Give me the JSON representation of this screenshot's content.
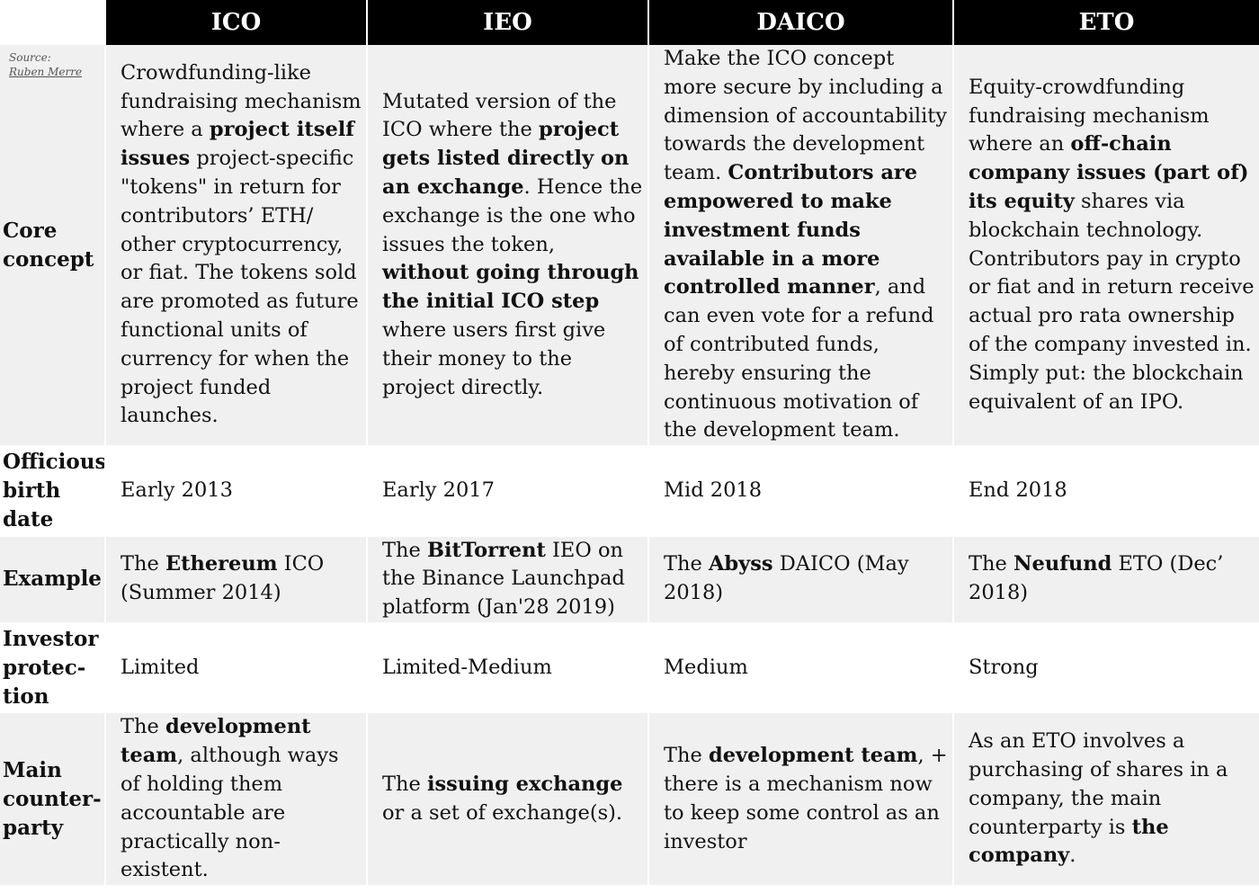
{
  "source": {
    "label": "Source:",
    "author": "Ruben Merre"
  },
  "columns": [
    "ICO",
    "IEO",
    "DAICO",
    "ETO"
  ],
  "rows": [
    {
      "key": "core-concept",
      "header": "Core concept",
      "shaded": true,
      "cells": [
        [
          {
            "t": "Crowdfunding-like fundraising mechanism where a "
          },
          {
            "t": "project itself issues",
            "b": true
          },
          {
            "t": " project-specific \"tokens\" in return for contributors’ ETH/ other cryptocurrency, or fiat. The tokens sold are promoted as future functional units of currency for when the project funded launches."
          }
        ],
        [
          {
            "t": "Mutated version of the ICO where the "
          },
          {
            "t": "project gets listed directly on an exchange",
            "b": true
          },
          {
            "t": ". Hence the exchange is the one who issues the token, "
          },
          {
            "t": "without going through the initial ICO step",
            "b": true
          },
          {
            "t": " where users first give their money to the project directly."
          }
        ],
        [
          {
            "t": "Make the ICO concept more secure by including a dimension of accountability towards the development team. "
          },
          {
            "t": "Contributors are empowered to make investment funds available in a more controlled manner",
            "b": true
          },
          {
            "t": ", and can even vote for a refund of contributed funds, hereby ensuring the continuous motivation of the development team."
          }
        ],
        [
          {
            "t": "Equity-crowdfunding fundraising mechanism where an "
          },
          {
            "t": "off-chain company issues (part of) its equity",
            "b": true
          },
          {
            "t": " shares via blockchain technology. Contributors pay in crypto or fiat and in return receive actual pro rata ownership of the company invested in. Simply put: the blockchain equivalent of an IPO."
          }
        ]
      ]
    },
    {
      "key": "birth-date",
      "header": "Officious birth date",
      "shaded": false,
      "cells": [
        [
          {
            "t": "Early 2013"
          }
        ],
        [
          {
            "t": "Early 2017"
          }
        ],
        [
          {
            "t": "Mid 2018"
          }
        ],
        [
          {
            "t": "End 2018"
          }
        ]
      ]
    },
    {
      "key": "example",
      "header": "Example",
      "shaded": true,
      "cells": [
        [
          {
            "t": "The "
          },
          {
            "t": "Ethereum",
            "b": true
          },
          {
            "t": " ICO (Summer 2014)"
          }
        ],
        [
          {
            "t": "The "
          },
          {
            "t": "BitTorrent",
            "b": true
          },
          {
            "t": " IEO on the Binance Launchpad platform (Jan'28 2019)"
          }
        ],
        [
          {
            "t": "The "
          },
          {
            "t": "Abyss",
            "b": true
          },
          {
            "t": " DAICO (May 2018)"
          }
        ],
        [
          {
            "t": "The "
          },
          {
            "t": "Neufund",
            "b": true
          },
          {
            "t": " ETO (Dec’ 2018)"
          }
        ]
      ]
    },
    {
      "key": "investor-protection",
      "header": "Investor protec-tion",
      "shaded": false,
      "cells": [
        [
          {
            "t": "Limited"
          }
        ],
        [
          {
            "t": "Limited-Medium"
          }
        ],
        [
          {
            "t": "Medium"
          }
        ],
        [
          {
            "t": "Strong"
          }
        ]
      ]
    },
    {
      "key": "main-counterparty",
      "header": "Main counter-party",
      "shaded": true,
      "cells": [
        [
          {
            "t": "The "
          },
          {
            "t": "development team",
            "b": true
          },
          {
            "t": ", although ways of holding them accountable are practically non-existent."
          }
        ],
        [
          {
            "t": "The "
          },
          {
            "t": "issuing exchange",
            "b": true
          },
          {
            "t": " or a set of exchange(s)."
          }
        ],
        [
          {
            "t": "The "
          },
          {
            "t": "development team",
            "b": true
          },
          {
            "t": ", + there is a mechanism now to keep some control as an investor"
          }
        ],
        [
          {
            "t": "As an ETO involves a purchasing of shares in a company, the main counterparty is "
          },
          {
            "t": "the company",
            "b": true
          },
          {
            "t": "."
          }
        ]
      ]
    }
  ]
}
